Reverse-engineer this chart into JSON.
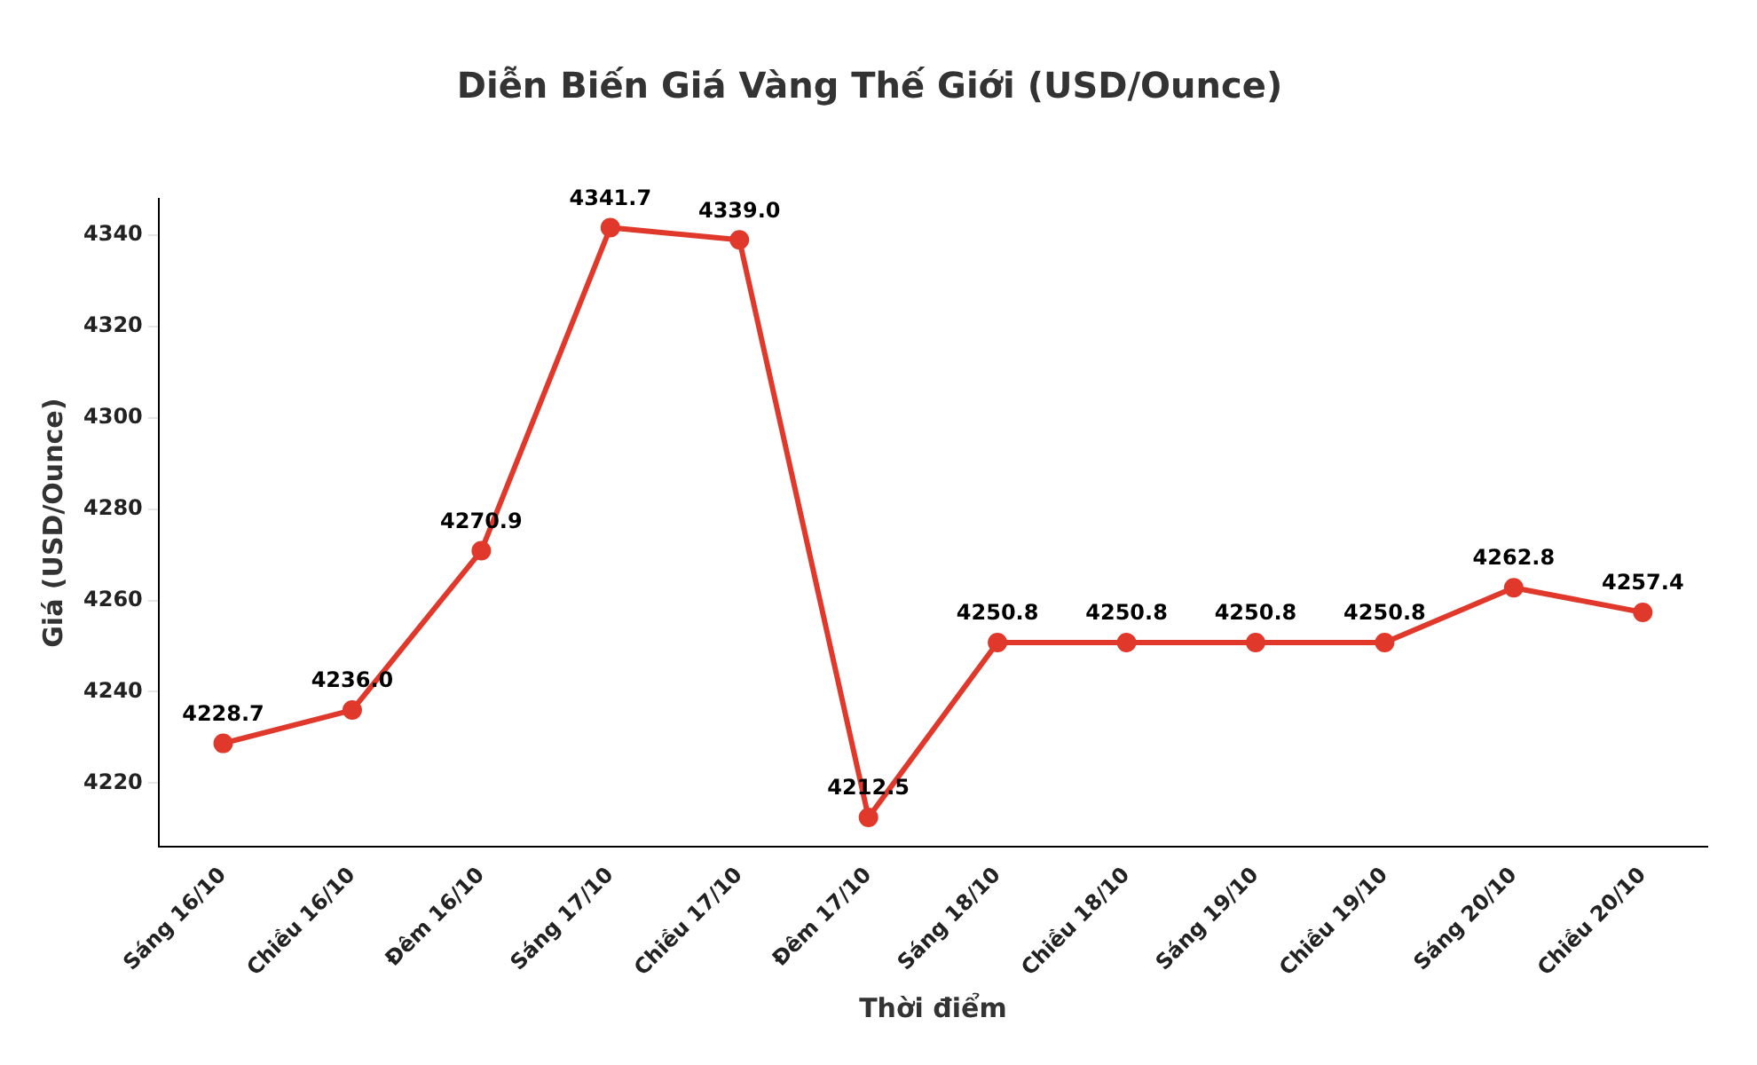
{
  "chart_data": {
    "type": "line",
    "title": "Diễn Biến Giá Vàng Thế Giới (USD/Ounce)",
    "xlabel": "Thời điểm",
    "ylabel": "Giá (USD/Ounce)",
    "categories": [
      "Sáng 16/10",
      "Chiều 16/10",
      "Đêm 16/10",
      "Sáng 17/10",
      "Chiều 17/10",
      "Đêm 17/10",
      "Sáng 18/10",
      "Chiều 18/10",
      "Sáng 19/10",
      "Chiều 19/10",
      "Sáng 20/10",
      "Chiều 20/10"
    ],
    "series": [
      {
        "color": "#e0392b",
        "values": [
          4228.7,
          4236.0,
          4270.9,
          4341.7,
          4339.0,
          4212.5,
          4250.8,
          4250.8,
          4250.8,
          4250.8,
          4262.8,
          4257.4
        ],
        "value_labels": [
          "4228.7",
          "4236.0",
          "4270.9",
          "4341.7",
          "4339.0",
          "4212.5",
          "4250.8",
          "4250.8",
          "4250.8",
          "4250.8",
          "4262.8",
          "4257.4"
        ]
      }
    ],
    "ylim": [
      4206,
      4348
    ],
    "yticks": [
      4220,
      4240,
      4260,
      4280,
      4300,
      4320,
      4340
    ],
    "marker": "circle",
    "line_style": "solid",
    "grid": false,
    "legend": false
  }
}
